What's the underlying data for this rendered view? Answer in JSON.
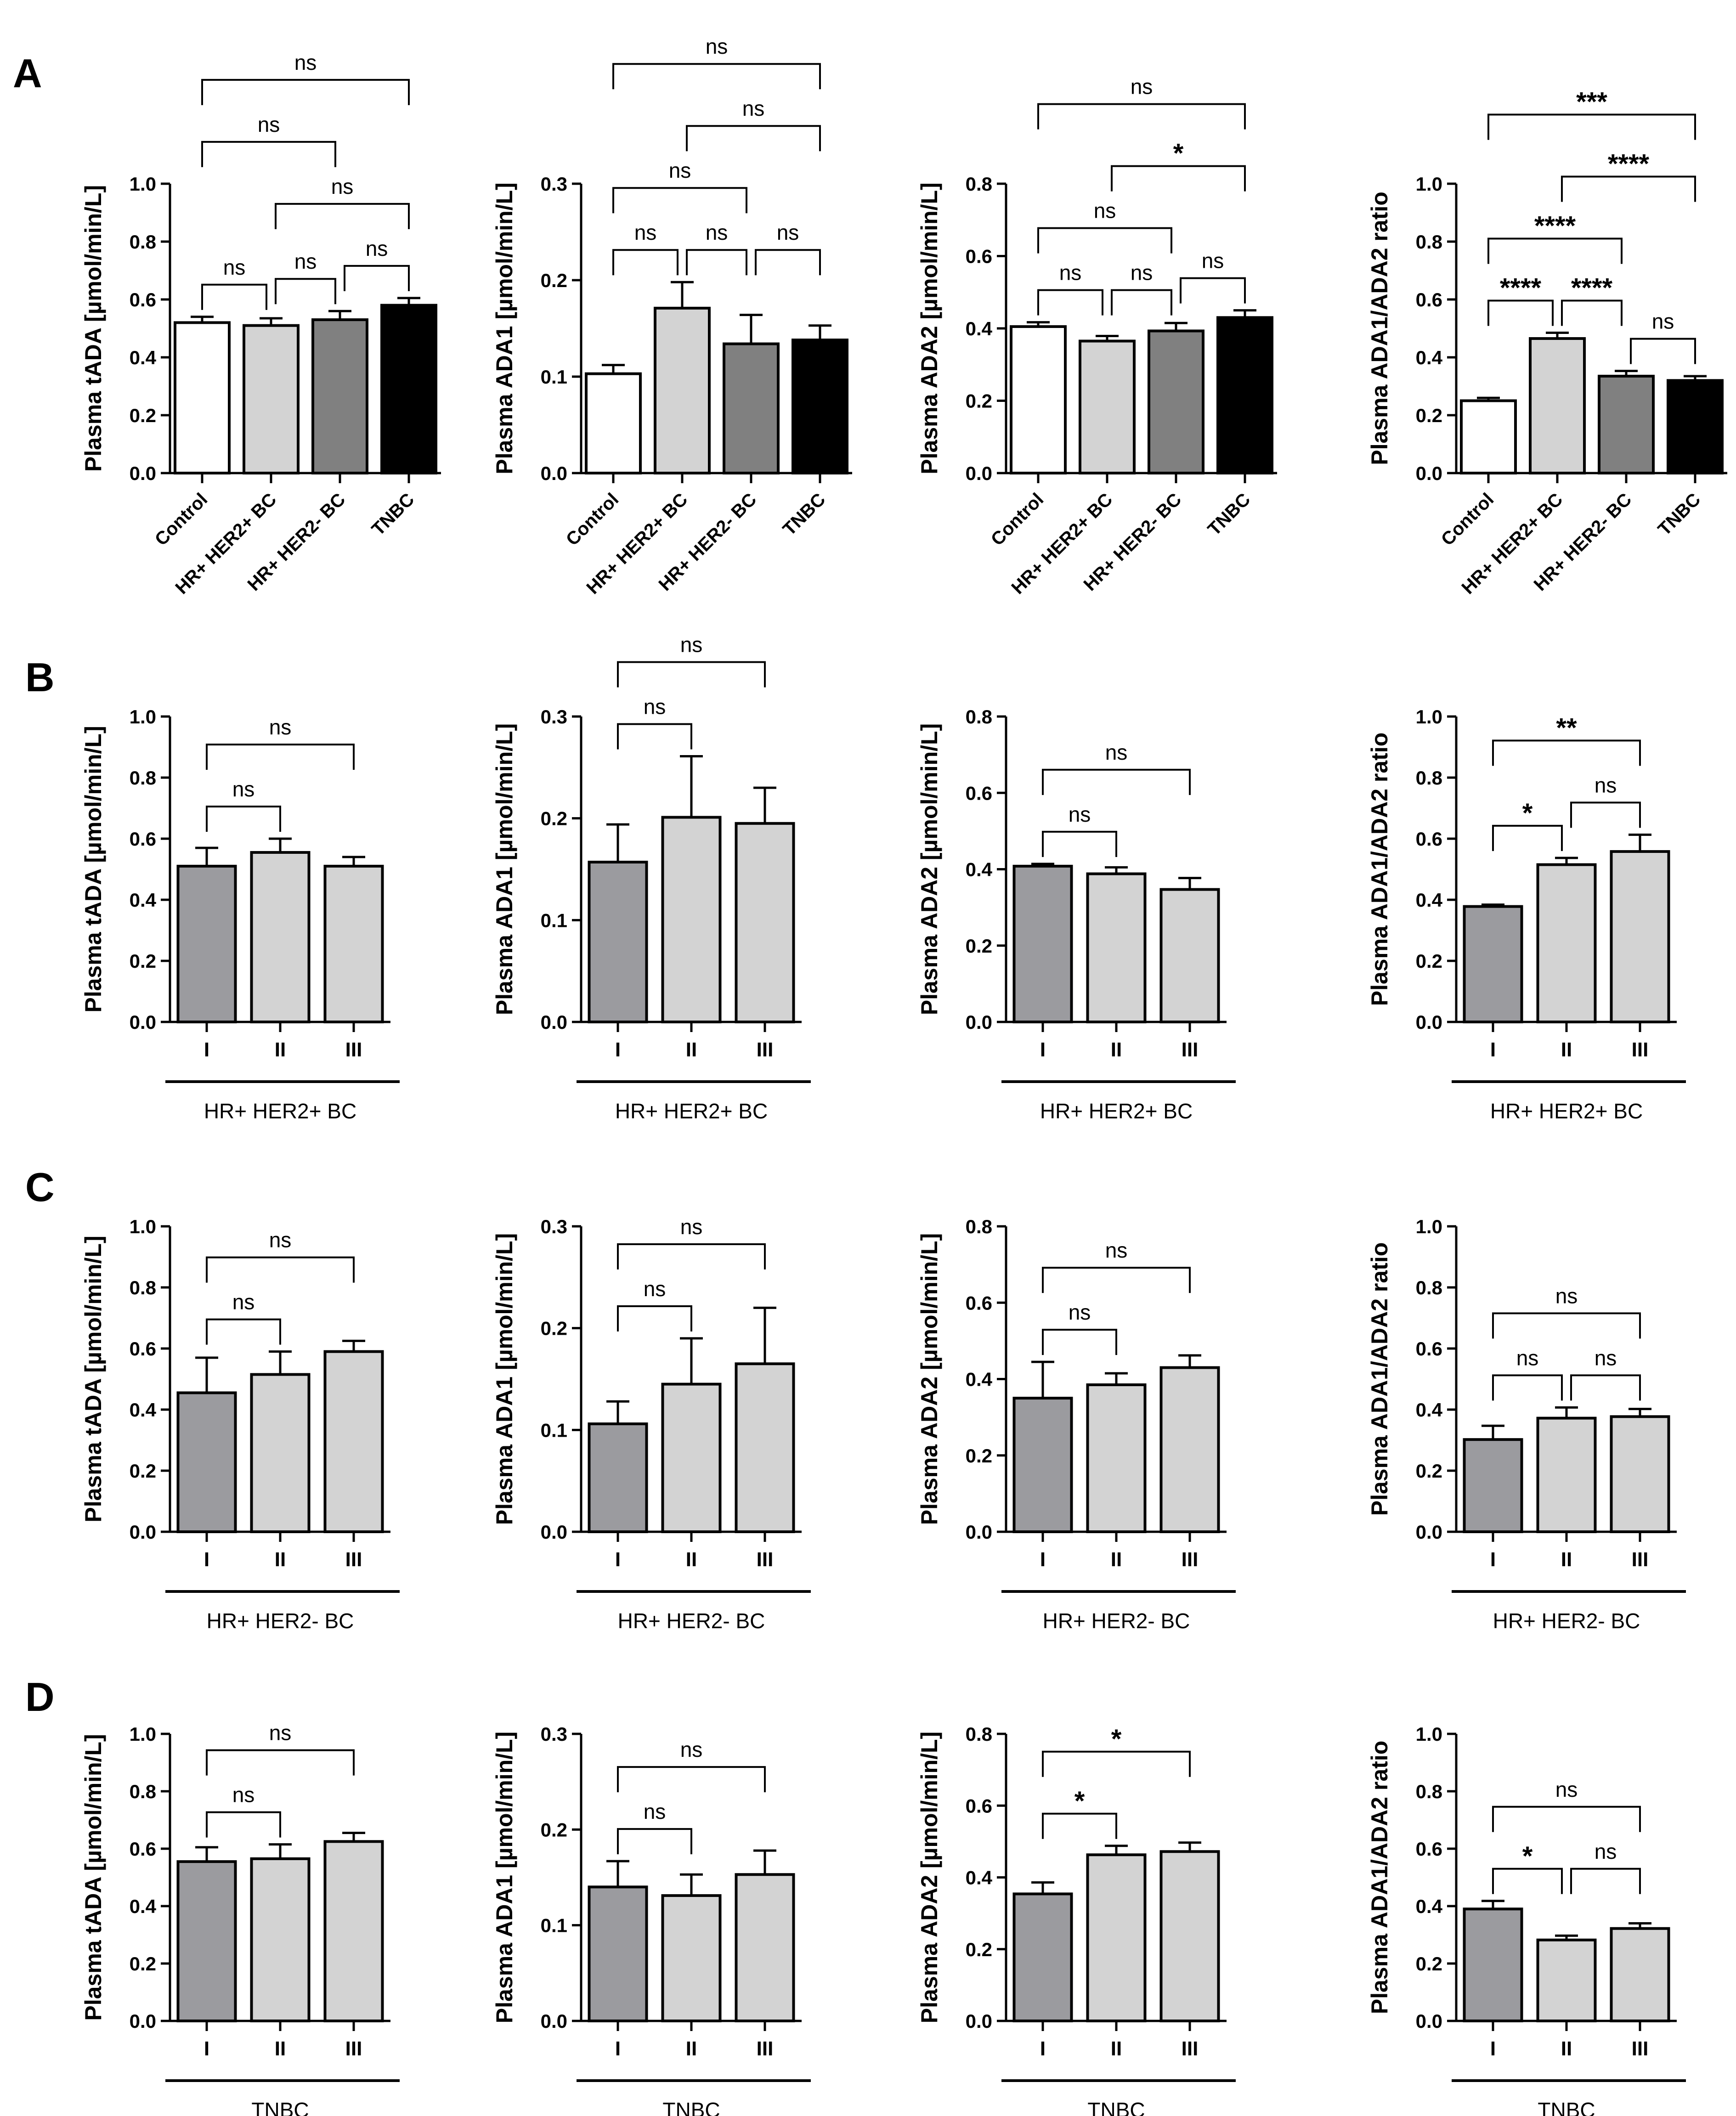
{
  "figure": {
    "colors": {
      "control": "#ffffff",
      "hr_her2_pos": "#d3d3d3",
      "hr_her2_neg": "#808080",
      "tnbc": "#000000",
      "stage_I": "#9b9b9f",
      "stage_other": "#d3d3d3",
      "axis": "#000000"
    },
    "panels": [
      {
        "label": "A"
      },
      {
        "label": "B"
      },
      {
        "label": "C"
      },
      {
        "label": "D"
      }
    ]
  },
  "chart_data": [
    {
      "type": "bar",
      "panel": "A",
      "ylabel": "Plasma tADA [µmol/min/L]",
      "ylim": [
        0,
        1.0
      ],
      "yticks": [
        "0.0",
        "0.2",
        "0.4",
        "0.6",
        "0.8",
        "1.0"
      ],
      "ytick_values": [
        0,
        0.2,
        0.4,
        0.6,
        0.8,
        1.0
      ],
      "categories": [
        "Control",
        "HR+ HER2+ BC",
        "HR+ HER2- BC",
        "TNBC"
      ],
      "values": [
        0.52,
        0.51,
        0.53,
        0.58
      ],
      "errors": [
        0.02,
        0.025,
        0.03,
        0.025
      ],
      "color_keys": [
        "control",
        "hr_her2_pos",
        "hr_her2_neg",
        "tnbc"
      ],
      "rotated_labels": true,
      "group_label": "",
      "brackets": [
        {
          "i": 0,
          "j": 1,
          "text": "ns"
        },
        {
          "i": 1,
          "j": 2,
          "text": "ns"
        },
        {
          "i": 2,
          "j": 3,
          "text": "ns"
        },
        {
          "i": 1,
          "j": 3,
          "text": "ns"
        },
        {
          "i": 0,
          "j": 2,
          "text": "ns"
        },
        {
          "i": 0,
          "j": 3,
          "text": "ns"
        }
      ]
    },
    {
      "type": "bar",
      "panel": "A",
      "ylabel": "Plasma ADA1 [µmol/min/L]",
      "ylim": [
        0,
        0.3
      ],
      "yticks": [
        "0.0",
        "0.1",
        "0.2",
        "0.3"
      ],
      "ytick_values": [
        0,
        0.1,
        0.2,
        0.3
      ],
      "categories": [
        "Control",
        "HR+ HER2+ BC",
        "HR+ HER2- BC",
        "TNBC"
      ],
      "values": [
        0.103,
        0.171,
        0.134,
        0.138
      ],
      "errors": [
        0.009,
        0.027,
        0.03,
        0.015
      ],
      "color_keys": [
        "control",
        "hr_her2_pos",
        "hr_her2_neg",
        "tnbc"
      ],
      "rotated_labels": true,
      "group_label": "",
      "brackets": [
        {
          "i": 0,
          "j": 1,
          "text": "ns"
        },
        {
          "i": 1,
          "j": 2,
          "text": "ns"
        },
        {
          "i": 2,
          "j": 3,
          "text": "ns"
        },
        {
          "i": 0,
          "j": 2,
          "text": "ns"
        },
        {
          "i": 1,
          "j": 3,
          "text": "ns"
        },
        {
          "i": 0,
          "j": 3,
          "text": "ns"
        }
      ]
    },
    {
      "type": "bar",
      "panel": "A",
      "ylabel": "Plasma ADA2 [µmol/min/L]",
      "ylim": [
        0,
        0.8
      ],
      "yticks": [
        "0.0",
        "0.2",
        "0.4",
        "0.6",
        "0.8"
      ],
      "ytick_values": [
        0,
        0.2,
        0.4,
        0.6,
        0.8
      ],
      "categories": [
        "Control",
        "HR+ HER2+ BC",
        "HR+ HER2- BC",
        "TNBC"
      ],
      "values": [
        0.405,
        0.365,
        0.393,
        0.43
      ],
      "errors": [
        0.012,
        0.014,
        0.022,
        0.02
      ],
      "color_keys": [
        "control",
        "hr_her2_pos",
        "hr_her2_neg",
        "tnbc"
      ],
      "rotated_labels": true,
      "group_label": "",
      "brackets": [
        {
          "i": 0,
          "j": 1,
          "text": "ns"
        },
        {
          "i": 1,
          "j": 2,
          "text": "ns"
        },
        {
          "i": 2,
          "j": 3,
          "text": "ns"
        },
        {
          "i": 0,
          "j": 2,
          "text": "ns"
        },
        {
          "i": 1,
          "j": 3,
          "text": "*"
        },
        {
          "i": 0,
          "j": 3,
          "text": "ns"
        }
      ]
    },
    {
      "type": "bar",
      "panel": "A",
      "ylabel": "Plasma ADA1/ADA2 ratio",
      "ylim": [
        0,
        1.0
      ],
      "yticks": [
        "0.0",
        "0.2",
        "0.4",
        "0.6",
        "0.8",
        "1.0"
      ],
      "ytick_values": [
        0,
        0.2,
        0.4,
        0.6,
        0.8,
        1.0
      ],
      "categories": [
        "Control",
        "HR+ HER2+ BC",
        "HR+ HER2- BC",
        "TNBC"
      ],
      "values": [
        0.25,
        0.465,
        0.335,
        0.32
      ],
      "errors": [
        0.01,
        0.02,
        0.018,
        0.015
      ],
      "color_keys": [
        "control",
        "hr_her2_pos",
        "hr_her2_neg",
        "tnbc"
      ],
      "rotated_labels": true,
      "group_label": "",
      "brackets": [
        {
          "i": 0,
          "j": 1,
          "text": "****"
        },
        {
          "i": 2,
          "j": 3,
          "text": "ns"
        },
        {
          "i": 1,
          "j": 2,
          "text": "****"
        },
        {
          "i": 0,
          "j": 2,
          "text": "****"
        },
        {
          "i": 1,
          "j": 3,
          "text": "****"
        },
        {
          "i": 0,
          "j": 3,
          "text": "***"
        }
      ]
    },
    {
      "type": "bar",
      "panel": "B",
      "ylabel": "Plasma tADA [µmol/min/L]",
      "ylim": [
        0,
        1.0
      ],
      "yticks": [
        "0.0",
        "0.2",
        "0.4",
        "0.6",
        "0.8",
        "1.0"
      ],
      "ytick_values": [
        0,
        0.2,
        0.4,
        0.6,
        0.8,
        1.0
      ],
      "categories": [
        "I",
        "II",
        "III"
      ],
      "values": [
        0.51,
        0.555,
        0.51
      ],
      "errors": [
        0.06,
        0.045,
        0.03
      ],
      "color_keys": [
        "stage_I",
        "stage_other",
        "stage_other"
      ],
      "rotated_labels": false,
      "group_label": "HR+ HER2+ BC",
      "brackets": [
        {
          "i": 0,
          "j": 1,
          "text": "ns"
        },
        {
          "i": 0,
          "j": 2,
          "text": "ns"
        }
      ]
    },
    {
      "type": "bar",
      "panel": "B",
      "ylabel": "Plasma ADA1 [µmol/min/L]",
      "ylim": [
        0,
        0.3
      ],
      "yticks": [
        "0.0",
        "0.1",
        "0.2",
        "0.3"
      ],
      "ytick_values": [
        0,
        0.1,
        0.2,
        0.3
      ],
      "categories": [
        "I",
        "II",
        "III"
      ],
      "values": [
        0.157,
        0.201,
        0.195
      ],
      "errors": [
        0.037,
        0.06,
        0.035
      ],
      "color_keys": [
        "stage_I",
        "stage_other",
        "stage_other"
      ],
      "rotated_labels": false,
      "group_label": "HR+ HER2+ BC",
      "brackets": [
        {
          "i": 0,
          "j": 1,
          "text": "ns"
        },
        {
          "i": 0,
          "j": 2,
          "text": "ns"
        }
      ]
    },
    {
      "type": "bar",
      "panel": "B",
      "ylabel": "Plasma ADA2 [µmol/min/L]",
      "ylim": [
        0,
        0.8
      ],
      "yticks": [
        "0.0",
        "0.2",
        "0.4",
        "0.6",
        "0.8"
      ],
      "ytick_values": [
        0,
        0.2,
        0.4,
        0.6,
        0.8
      ],
      "categories": [
        "I",
        "II",
        "III"
      ],
      "values": [
        0.408,
        0.388,
        0.347
      ],
      "errors": [
        0.006,
        0.017,
        0.03
      ],
      "color_keys": [
        "stage_I",
        "stage_other",
        "stage_other"
      ],
      "rotated_labels": false,
      "group_label": "HR+ HER2+ BC",
      "brackets": [
        {
          "i": 0,
          "j": 1,
          "text": "ns"
        },
        {
          "i": 0,
          "j": 2,
          "text": "ns"
        }
      ]
    },
    {
      "type": "bar",
      "panel": "B",
      "ylabel": "Plasma ADA1/ADA2 ratio",
      "ylim": [
        0,
        1.0
      ],
      "yticks": [
        "0.0",
        "0.2",
        "0.4",
        "0.6",
        "0.8",
        "1.0"
      ],
      "ytick_values": [
        0,
        0.2,
        0.4,
        0.6,
        0.8,
        1.0
      ],
      "categories": [
        "I",
        "II",
        "III"
      ],
      "values": [
        0.378,
        0.515,
        0.558
      ],
      "errors": [
        0.006,
        0.022,
        0.055
      ],
      "color_keys": [
        "stage_I",
        "stage_other",
        "stage_other"
      ],
      "rotated_labels": false,
      "group_label": "HR+ HER2+ BC",
      "brackets": [
        {
          "i": 0,
          "j": 1,
          "text": "*"
        },
        {
          "i": 1,
          "j": 2,
          "text": "ns"
        },
        {
          "i": 0,
          "j": 2,
          "text": "**"
        }
      ]
    },
    {
      "type": "bar",
      "panel": "C",
      "ylabel": "Plasma tADA [µmol/min/L]",
      "ylim": [
        0,
        1.0
      ],
      "yticks": [
        "0.0",
        "0.2",
        "0.4",
        "0.6",
        "0.8",
        "1.0"
      ],
      "ytick_values": [
        0,
        0.2,
        0.4,
        0.6,
        0.8,
        1.0
      ],
      "categories": [
        "I",
        "II",
        "III"
      ],
      "values": [
        0.455,
        0.515,
        0.59
      ],
      "errors": [
        0.115,
        0.075,
        0.035
      ],
      "color_keys": [
        "stage_I",
        "stage_other",
        "stage_other"
      ],
      "rotated_labels": false,
      "group_label": "HR+ HER2- BC",
      "brackets": [
        {
          "i": 0,
          "j": 1,
          "text": "ns"
        },
        {
          "i": 0,
          "j": 2,
          "text": "ns"
        }
      ]
    },
    {
      "type": "bar",
      "panel": "C",
      "ylabel": "Plasma ADA1 [µmol/min/L]",
      "ylim": [
        0,
        0.3
      ],
      "yticks": [
        "0.0",
        "0.1",
        "0.2",
        "0.3"
      ],
      "ytick_values": [
        0,
        0.1,
        0.2,
        0.3
      ],
      "categories": [
        "I",
        "II",
        "III"
      ],
      "values": [
        0.106,
        0.145,
        0.165
      ],
      "errors": [
        0.022,
        0.045,
        0.055
      ],
      "color_keys": [
        "stage_I",
        "stage_other",
        "stage_other"
      ],
      "rotated_labels": false,
      "group_label": "HR+ HER2- BC",
      "brackets": [
        {
          "i": 0,
          "j": 1,
          "text": "ns"
        },
        {
          "i": 0,
          "j": 2,
          "text": "ns"
        }
      ]
    },
    {
      "type": "bar",
      "panel": "C",
      "ylabel": "Plasma ADA2 [µmol/min/L]",
      "ylim": [
        0,
        0.8
      ],
      "yticks": [
        "0.0",
        "0.2",
        "0.4",
        "0.6",
        "0.8"
      ],
      "ytick_values": [
        0,
        0.2,
        0.4,
        0.6,
        0.8
      ],
      "categories": [
        "I",
        "II",
        "III"
      ],
      "values": [
        0.35,
        0.385,
        0.43
      ],
      "errors": [
        0.095,
        0.03,
        0.032
      ],
      "color_keys": [
        "stage_I",
        "stage_other",
        "stage_other"
      ],
      "rotated_labels": false,
      "group_label": "HR+ HER2- BC",
      "brackets": [
        {
          "i": 0,
          "j": 1,
          "text": "ns"
        },
        {
          "i": 0,
          "j": 2,
          "text": "ns"
        }
      ]
    },
    {
      "type": "bar",
      "panel": "C",
      "ylabel": "Plasma ADA1/ADA2 ratio",
      "ylim": [
        0,
        1.0
      ],
      "yticks": [
        "0.0",
        "0.2",
        "0.4",
        "0.6",
        "0.8",
        "1.0"
      ],
      "ytick_values": [
        0,
        0.2,
        0.4,
        0.6,
        0.8,
        1.0
      ],
      "categories": [
        "I",
        "II",
        "III"
      ],
      "values": [
        0.302,
        0.372,
        0.377
      ],
      "errors": [
        0.045,
        0.035,
        0.025
      ],
      "color_keys": [
        "stage_I",
        "stage_other",
        "stage_other"
      ],
      "rotated_labels": false,
      "group_label": "HR+ HER2- BC",
      "brackets": [
        {
          "i": 0,
          "j": 1,
          "text": "ns"
        },
        {
          "i": 1,
          "j": 2,
          "text": "ns"
        },
        {
          "i": 0,
          "j": 2,
          "text": "ns"
        }
      ]
    },
    {
      "type": "bar",
      "panel": "D",
      "ylabel": "Plasma tADA [µmol/min/L]",
      "ylim": [
        0,
        1.0
      ],
      "yticks": [
        "0.0",
        "0.2",
        "0.4",
        "0.6",
        "0.8",
        "1.0"
      ],
      "ytick_values": [
        0,
        0.2,
        0.4,
        0.6,
        0.8,
        1.0
      ],
      "categories": [
        "I",
        "II",
        "III"
      ],
      "values": [
        0.555,
        0.565,
        0.625
      ],
      "errors": [
        0.05,
        0.05,
        0.03
      ],
      "color_keys": [
        "stage_I",
        "stage_other",
        "stage_other"
      ],
      "rotated_labels": false,
      "group_label": "TNBC",
      "brackets": [
        {
          "i": 0,
          "j": 1,
          "text": "ns"
        },
        {
          "i": 0,
          "j": 2,
          "text": "ns"
        }
      ]
    },
    {
      "type": "bar",
      "panel": "D",
      "ylabel": "Plasma ADA1 [µmol/min/L]",
      "ylim": [
        0,
        0.3
      ],
      "yticks": [
        "0.0",
        "0.1",
        "0.2",
        "0.3"
      ],
      "ytick_values": [
        0,
        0.1,
        0.2,
        0.3
      ],
      "categories": [
        "I",
        "II",
        "III"
      ],
      "values": [
        0.14,
        0.131,
        0.153
      ],
      "errors": [
        0.027,
        0.022,
        0.025
      ],
      "color_keys": [
        "stage_I",
        "stage_other",
        "stage_other"
      ],
      "rotated_labels": false,
      "group_label": "TNBC",
      "brackets": [
        {
          "i": 0,
          "j": 1,
          "text": "ns"
        },
        {
          "i": 0,
          "j": 2,
          "text": "ns"
        }
      ]
    },
    {
      "type": "bar",
      "panel": "D",
      "ylabel": "Plasma ADA2 [µmol/min/L]",
      "ylim": [
        0,
        0.8
      ],
      "yticks": [
        "0.0",
        "0.2",
        "0.4",
        "0.6",
        "0.8"
      ],
      "ytick_values": [
        0,
        0.2,
        0.4,
        0.6,
        0.8
      ],
      "categories": [
        "I",
        "II",
        "III"
      ],
      "values": [
        0.354,
        0.463,
        0.472
      ],
      "errors": [
        0.032,
        0.025,
        0.025
      ],
      "color_keys": [
        "stage_I",
        "stage_other",
        "stage_other"
      ],
      "rotated_labels": false,
      "group_label": "TNBC",
      "brackets": [
        {
          "i": 0,
          "j": 1,
          "text": "*"
        },
        {
          "i": 0,
          "j": 2,
          "text": "*"
        }
      ]
    },
    {
      "type": "bar",
      "panel": "D",
      "ylabel": "Plasma ADA1/ADA2 ratio",
      "ylim": [
        0,
        1.0
      ],
      "yticks": [
        "0.0",
        "0.2",
        "0.4",
        "0.6",
        "0.8",
        "1.0"
      ],
      "ytick_values": [
        0,
        0.2,
        0.4,
        0.6,
        0.8,
        1.0
      ],
      "categories": [
        "I",
        "II",
        "III"
      ],
      "values": [
        0.39,
        0.282,
        0.322
      ],
      "errors": [
        0.028,
        0.015,
        0.018
      ],
      "color_keys": [
        "stage_I",
        "stage_other",
        "stage_other"
      ],
      "rotated_labels": false,
      "group_label": "TNBC",
      "brackets": [
        {
          "i": 0,
          "j": 1,
          "text": "*"
        },
        {
          "i": 1,
          "j": 2,
          "text": "ns"
        },
        {
          "i": 0,
          "j": 2,
          "text": "ns"
        }
      ]
    }
  ]
}
